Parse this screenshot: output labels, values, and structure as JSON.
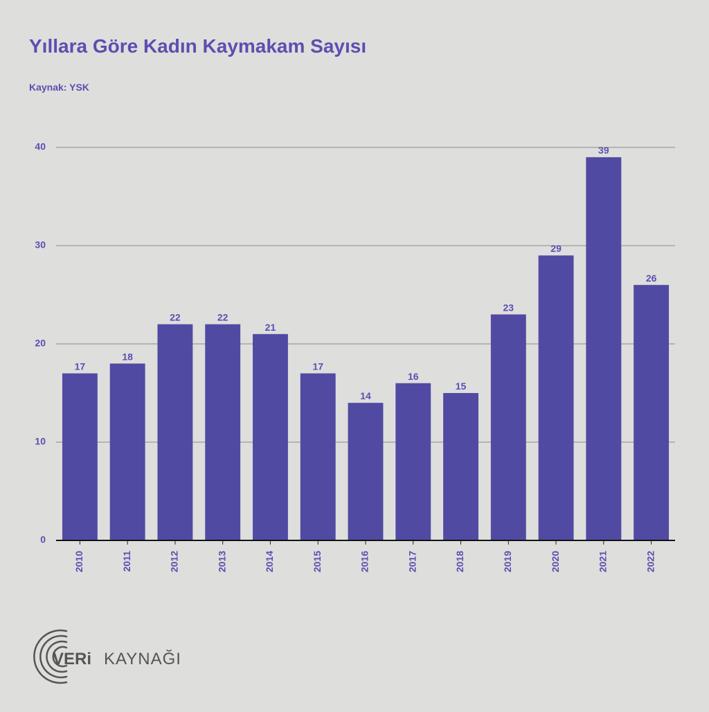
{
  "chart_data": {
    "type": "bar",
    "title": "Yıllara Göre Kadın  Kaymakam Sayısı",
    "subtitle": "Kaynak: YSK",
    "categories": [
      "2010",
      "2011",
      "2012",
      "2013",
      "2014",
      "2015",
      "2016",
      "2017",
      "2018",
      "2019",
      "2020",
      "2021",
      "2022"
    ],
    "values": [
      17,
      18,
      22,
      22,
      21,
      17,
      14,
      16,
      15,
      23,
      29,
      39,
      26
    ],
    "color": "#514aa3",
    "ylim": [
      0,
      40
    ],
    "yticks": [
      0,
      10,
      20,
      30,
      40
    ],
    "grid": true
  },
  "logo": {
    "bold": "VERi",
    "light": "KAYNAĞI"
  }
}
